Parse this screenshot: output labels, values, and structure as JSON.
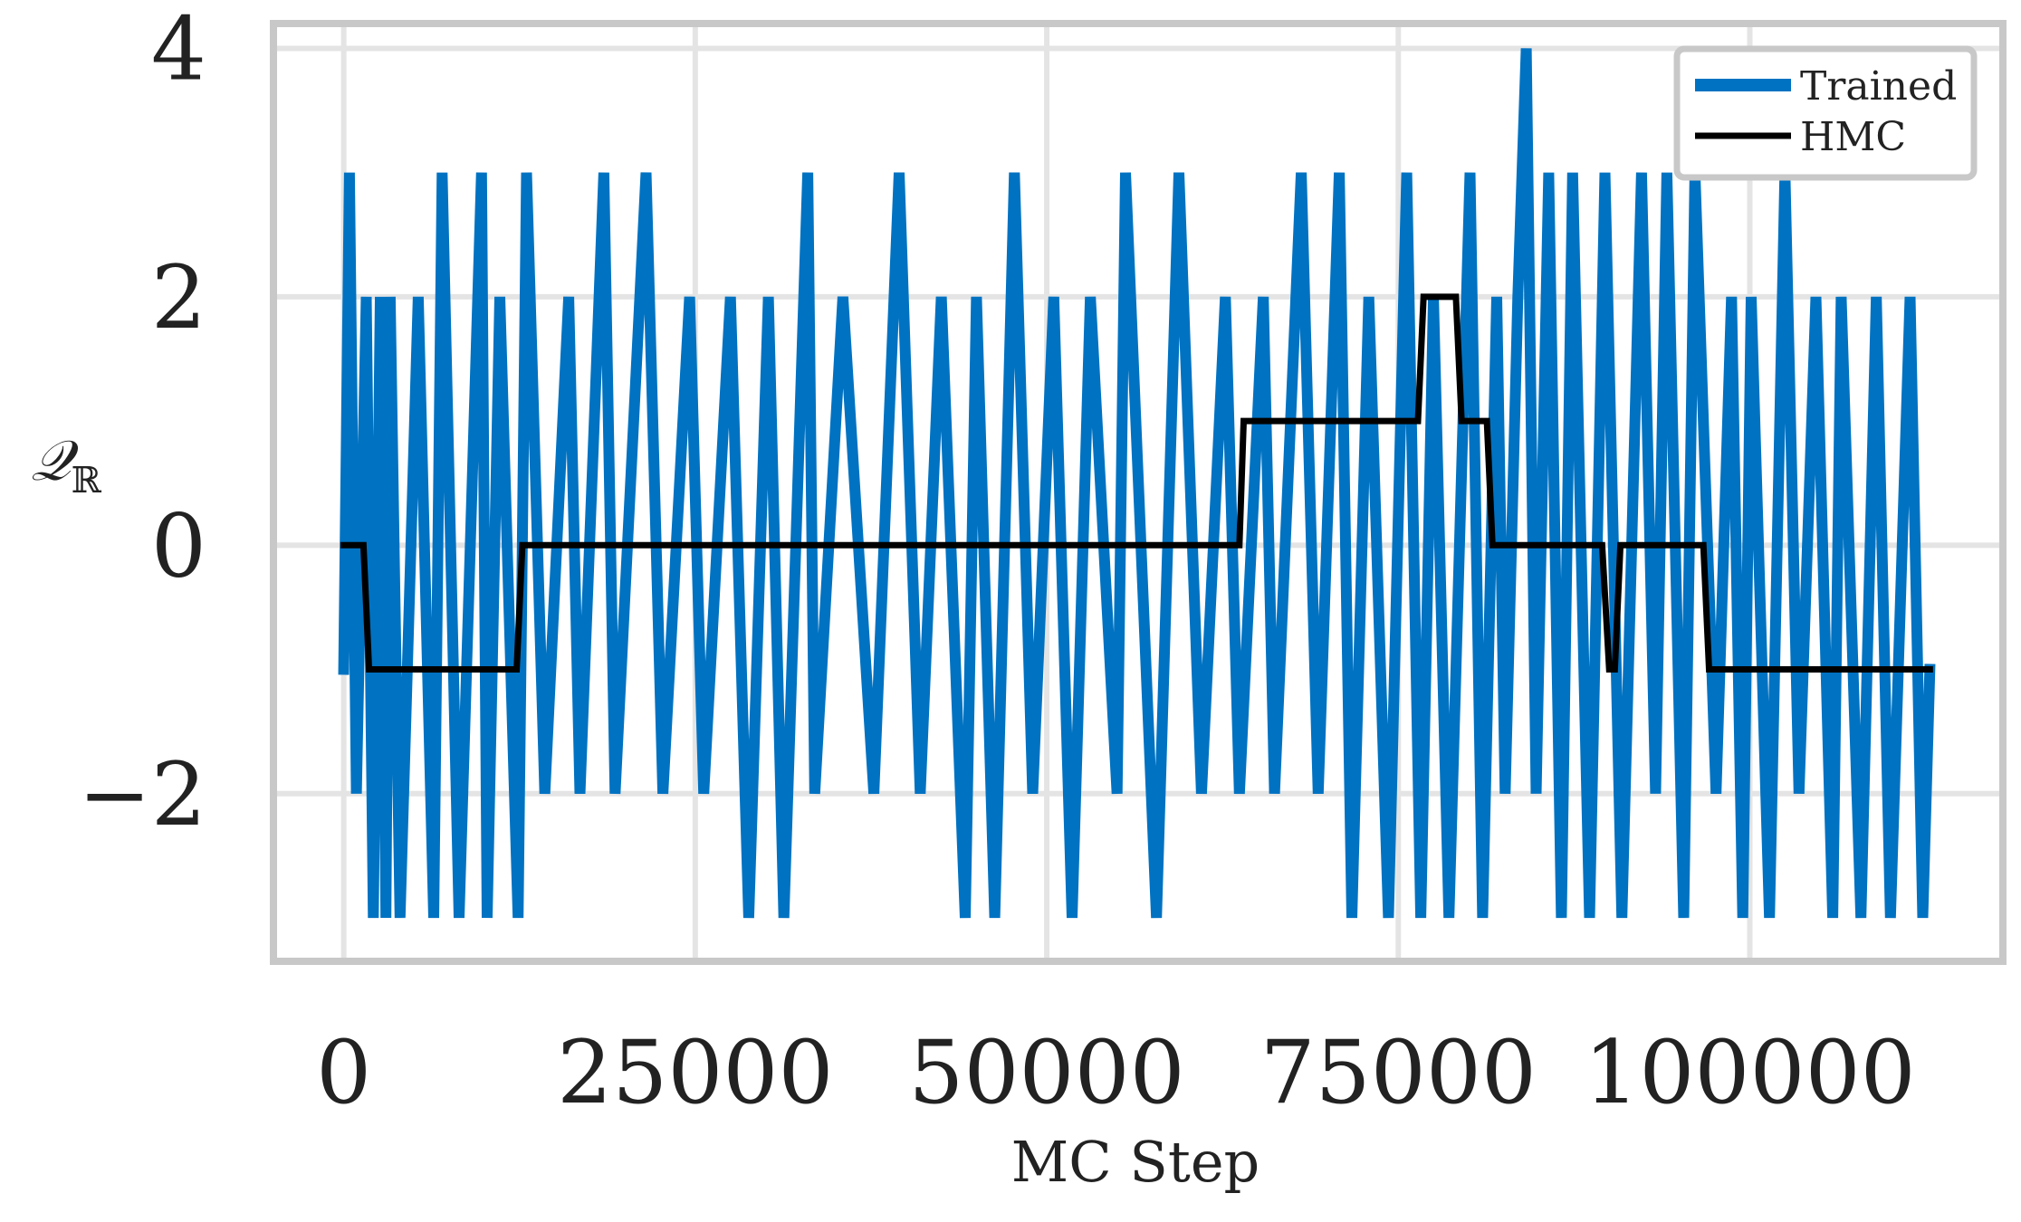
{
  "chart_data": {
    "type": "line",
    "xlabel": "MC Step",
    "ylabel": "𝒬",
    "ylabel_subscript": "ℝ",
    "xlim": [
      -5000,
      118000
    ],
    "ylim": [
      -3.35,
      4.2
    ],
    "x_ticks": [
      0,
      25000,
      50000,
      75000,
      100000
    ],
    "x_tick_labels": [
      "0",
      "25000",
      "50000",
      "75000",
      "100000"
    ],
    "y_ticks": [
      -2,
      0,
      2,
      4
    ],
    "y_tick_labels": [
      "−2",
      "0",
      "2",
      "4"
    ],
    "grid": true,
    "legend_position": "top-right",
    "series": [
      {
        "name": "Trained",
        "color": "#0072c2",
        "x": [
          0,
          400,
          900,
          1600,
          2100,
          2600,
          3000,
          3300,
          4000,
          5300,
          6400,
          7000,
          8200,
          9800,
          10200,
          11100,
          12400,
          13000,
          14300,
          16000,
          16800,
          18500,
          19300,
          21500,
          22700,
          24600,
          25600,
          27500,
          28800,
          30200,
          31300,
          33000,
          33500,
          35500,
          37700,
          39500,
          41000,
          42500,
          44200,
          45000,
          46300,
          47700,
          49000,
          50500,
          51800,
          53100,
          55000,
          55600,
          57800,
          59400,
          61000,
          62700,
          63700,
          65400,
          66200,
          68100,
          69300,
          70800,
          71700,
          72900,
          74300,
          75600,
          76600,
          77500,
          78600,
          80100,
          81000,
          82000,
          82600,
          83500,
          84100,
          84800,
          85700,
          86600,
          87400,
          88600,
          89700,
          90900,
          92300,
          93300,
          94100,
          95300,
          96100,
          97600,
          98700,
          99500,
          100100,
          101400,
          102500,
          103500,
          104700,
          105900,
          106500,
          107900,
          109000,
          110000,
          111400,
          112300,
          112800
        ],
        "values": [
          -1,
          3,
          -2,
          2,
          -3,
          2,
          -3,
          2,
          -3,
          2,
          -3,
          3,
          -3,
          3,
          -3,
          2,
          -3,
          3,
          -2,
          2,
          -2,
          3,
          -2,
          3,
          -2,
          2,
          -2,
          2,
          -3,
          2,
          -3,
          3,
          -2,
          2,
          -2,
          3,
          -2,
          2,
          -3,
          2,
          -3,
          3,
          -2,
          2,
          -3,
          2,
          -2,
          3,
          -3,
          3,
          -2,
          2,
          -2,
          2,
          -2,
          3,
          -2,
          3,
          -3,
          2,
          -3,
          3,
          -3,
          2,
          -3,
          3,
          -3,
          2,
          -2,
          2,
          4,
          -2,
          3,
          -3,
          3,
          -3,
          3,
          -3,
          3,
          -2,
          3,
          -3,
          3,
          -2,
          2,
          -3,
          2,
          -3,
          3,
          -2,
          2,
          -3,
          2,
          -3,
          2,
          -3,
          2,
          -3,
          -1
        ]
      },
      {
        "name": "HMC",
        "color": "#000000",
        "x": [
          0,
          1400,
          1800,
          12300,
          12700,
          63700,
          64000,
          76400,
          76800,
          79100,
          79500,
          81300,
          81700,
          89500,
          90000,
          90400,
          90800,
          96700,
          97100,
          112800
        ],
        "values": [
          0,
          0,
          -1,
          -1,
          0,
          0,
          1,
          1,
          2,
          2,
          1,
          1,
          0,
          0,
          -1,
          -1,
          0,
          0,
          -1,
          -1
        ]
      }
    ]
  }
}
